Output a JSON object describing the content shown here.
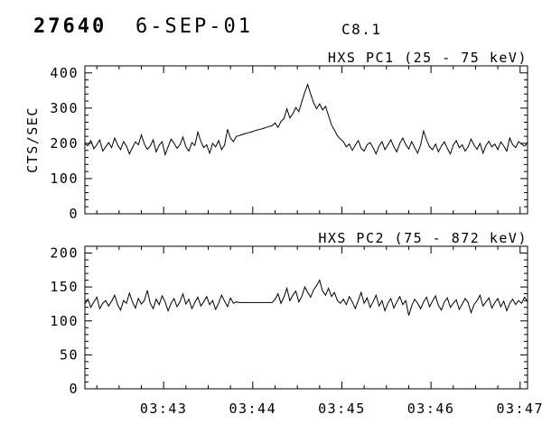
{
  "header": {
    "event_id": "27640",
    "date": "6-SEP-01",
    "goes_class": "C8.1"
  },
  "chart_data": {
    "type": "line",
    "line_color": "#000000",
    "background": "#ffffff",
    "grid": false,
    "legend": "none",
    "x_axis": {
      "start_s": 127,
      "end_s": 425,
      "sample_step_s": 2,
      "major_ticks_s": [
        180,
        240,
        300,
        360,
        420
      ],
      "major_tick_labels": [
        "03:43",
        "03:44",
        "03:45",
        "03:46",
        "03:47"
      ],
      "minor_tick_step_s": 15
    },
    "panels": [
      {
        "name": "HXS PC1",
        "title": "HXS PC1 (25 - 75 keV)",
        "ylabel": "CTS/SEC",
        "ylim": [
          0,
          420
        ],
        "yticks": [
          0,
          100,
          200,
          300,
          400
        ],
        "ytick_labels": [
          "0",
          "100",
          "200",
          "300",
          "400"
        ],
        "minor_ytick_step": 20,
        "values": [
          200,
          193,
          208,
          185,
          196,
          210,
          178,
          190,
          202,
          188,
          215,
          196,
          182,
          205,
          192,
          170,
          188,
          204,
          196,
          224,
          198,
          183,
          192,
          210,
          176,
          195,
          205,
          168,
          190,
          212,
          200,
          186,
          196,
          218,
          190,
          178,
          202,
          194,
          232,
          206,
          188,
          196,
          172,
          200,
          190,
          208,
          182,
          195,
          240,
          215,
          205,
          220,
          222,
          225,
          228,
          230,
          232,
          235,
          238,
          240,
          242,
          245,
          248,
          250,
          258,
          245,
          262,
          270,
          298,
          272,
          284,
          302,
          290,
          318,
          345,
          367,
          340,
          315,
          298,
          312,
          295,
          305,
          278,
          252,
          238,
          222,
          212,
          205,
          190,
          198,
          180,
          195,
          208,
          186,
          178,
          196,
          202,
          188,
          170,
          192,
          205,
          182,
          196,
          210,
          190,
          176,
          200,
          215,
          196,
          184,
          205,
          188,
          172,
          195,
          235,
          210,
          190,
          182,
          198,
          176,
          192,
          204,
          186,
          170,
          195,
          208,
          188,
          196,
          178,
          190,
          212,
          195,
          183,
          200,
          172,
          194,
          206,
          190,
          198,
          182,
          204,
          192,
          178,
          215,
          196,
          188,
          205,
          198,
          192,
          201
        ]
      },
      {
        "name": "HXS PC2",
        "title": "HXS PC2 (75 - 872 keV)",
        "ylabel": "",
        "ylim": [
          0,
          210
        ],
        "yticks": [
          0,
          50,
          100,
          150,
          200
        ],
        "ytick_labels": [
          "0",
          "50",
          "100",
          "150",
          "200"
        ],
        "minor_ytick_step": 10,
        "values": [
          125,
          132,
          120,
          128,
          135,
          118,
          126,
          130,
          122,
          129,
          138,
          124,
          116,
          130,
          126,
          141,
          128,
          119,
          133,
          125,
          130,
          145,
          126,
          118,
          132,
          124,
          137,
          128,
          115,
          126,
          133,
          121,
          128,
          140,
          125,
          132,
          118,
          127,
          135,
          122,
          128,
          136,
          124,
          130,
          117,
          126,
          138,
          129,
          121,
          134,
          126,
          128,
          127,
          127,
          127,
          127,
          127,
          127,
          127,
          127,
          127,
          127,
          127,
          127,
          132,
          140,
          126,
          135,
          148,
          130,
          138,
          144,
          128,
          136,
          150,
          142,
          135,
          146,
          152,
          160,
          144,
          138,
          148,
          136,
          142,
          130,
          126,
          132,
          124,
          136,
          128,
          118,
          130,
          142,
          126,
          134,
          120,
          128,
          138,
          122,
          130,
          115,
          126,
          133,
          119,
          128,
          136,
          124,
          130,
          108,
          122,
          132,
          126,
          118,
          128,
          135,
          121,
          129,
          137,
          123,
          116,
          128,
          134,
          120,
          126,
          131,
          117,
          125,
          133,
          127,
          112,
          124,
          130,
          138,
          122,
          128,
          134,
          119,
          127,
          133,
          121,
          129,
          115,
          126,
          132,
          124,
          130,
          126,
          135,
          128
        ]
      }
    ]
  }
}
